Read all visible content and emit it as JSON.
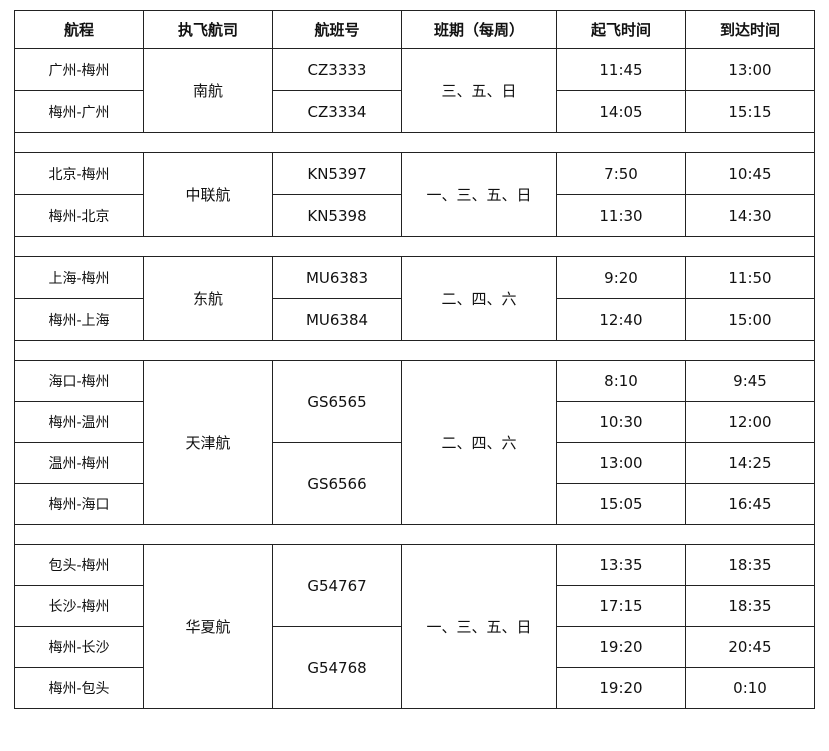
{
  "headers": [
    "航程",
    "执飞航司",
    "航班号",
    "班期（每周）",
    "起飞时间",
    "到达时间"
  ],
  "groups": [
    {
      "airline": "南航",
      "days": "三、五、日",
      "flights": [
        {
          "no": "CZ3333",
          "rows": [
            {
              "route": "广州-梅州",
              "dep": "11:45",
              "arr": "13:00"
            }
          ]
        },
        {
          "no": "CZ3334",
          "rows": [
            {
              "route": "梅州-广州",
              "dep": "14:05",
              "arr": "15:15"
            }
          ]
        }
      ]
    },
    {
      "airline": "中联航",
      "days": "一、三、五、日",
      "flights": [
        {
          "no": "KN5397",
          "rows": [
            {
              "route": "北京-梅州",
              "dep": "7:50",
              "arr": "10:45"
            }
          ]
        },
        {
          "no": "KN5398",
          "rows": [
            {
              "route": "梅州-北京",
              "dep": "11:30",
              "arr": "14:30"
            }
          ]
        }
      ]
    },
    {
      "airline": "东航",
      "days": "二、四、六",
      "flights": [
        {
          "no": "MU6383",
          "rows": [
            {
              "route": "上海-梅州",
              "dep": "9:20",
              "arr": "11:50"
            }
          ]
        },
        {
          "no": "MU6384",
          "rows": [
            {
              "route": "梅州-上海",
              "dep": "12:40",
              "arr": "15:00"
            }
          ]
        }
      ]
    },
    {
      "airline": "天津航",
      "days": "二、四、六",
      "flights": [
        {
          "no": "GS6565",
          "rows": [
            {
              "route": "海口-梅州",
              "dep": "8:10",
              "arr": "9:45"
            },
            {
              "route": "梅州-温州",
              "dep": "10:30",
              "arr": "12:00"
            }
          ]
        },
        {
          "no": "GS6566",
          "rows": [
            {
              "route": "温州-梅州",
              "dep": "13:00",
              "arr": "14:25"
            },
            {
              "route": "梅州-海口",
              "dep": "15:05",
              "arr": "16:45"
            }
          ]
        }
      ]
    },
    {
      "airline": "华夏航",
      "days": "一、三、五、日",
      "flights": [
        {
          "no": "G54767",
          "rows": [
            {
              "route": "包头-梅州",
              "dep": "13:35",
              "arr": "18:35"
            },
            {
              "route": "长沙-梅州",
              "dep": "17:15",
              "arr": "18:35"
            }
          ]
        },
        {
          "no": "G54768",
          "rows": [
            {
              "route": "梅州-长沙",
              "dep": "19:20",
              "arr": "20:45"
            },
            {
              "route": "梅州-包头",
              "dep": "19:20",
              "arr": "0:10"
            }
          ]
        }
      ]
    }
  ]
}
